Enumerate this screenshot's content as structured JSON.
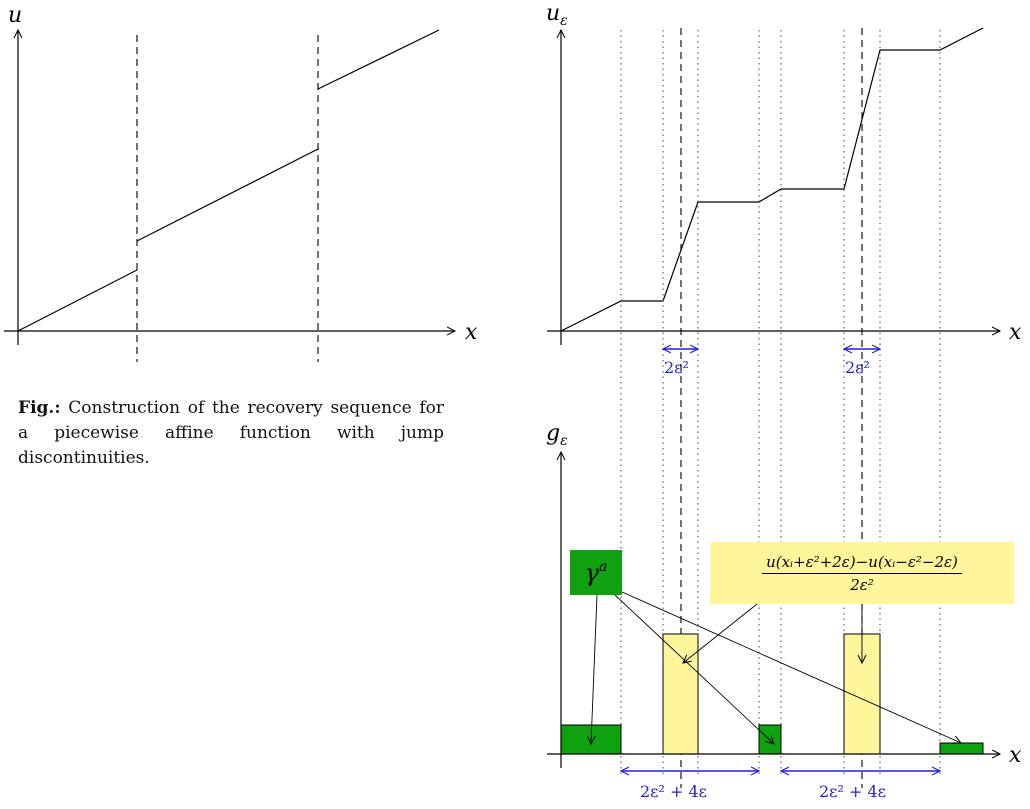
{
  "caption": {
    "lead": "Fig.:",
    "text": "Construction of the recovery sequence for a piecewise affine function with jump discontinuities."
  },
  "plot_left": {
    "y_label": "u",
    "x_label": "x"
  },
  "plot_right_top": {
    "y_label": "u",
    "y_label_sub": "ε",
    "x_label": "x",
    "interval_label_1": "2ε²",
    "interval_label_2": "2ε²"
  },
  "plot_right_bottom": {
    "y_label": "g",
    "y_label_sub": "ε",
    "x_label": "x",
    "green_box_label": "γ",
    "green_box_sup": "a",
    "formula_numerator": "u(xᵢ+ε²+2ε)−u(xᵢ−ε²−2ε)",
    "formula_denominator": "2ε²",
    "interval_label_1": "2ε² + 4ε",
    "interval_label_2": "2ε² + 4ε"
  },
  "colors": {
    "green": "#0fa10f",
    "yellow": "#fff59a",
    "blue": "#1f1fe6"
  }
}
